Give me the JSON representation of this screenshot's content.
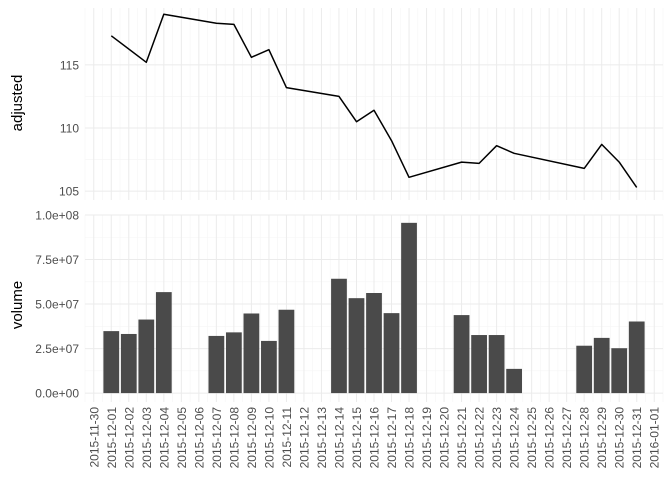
{
  "chart_data": [
    {
      "type": "line",
      "ylabel": "adjusted",
      "yticks": [
        105,
        110,
        115
      ],
      "ylim": [
        104.3,
        119.5
      ],
      "points": [
        {
          "x": "2015-12-01",
          "y": 117.3
        },
        {
          "x": "2015-12-03",
          "y": 115.2
        },
        {
          "x": "2015-12-04",
          "y": 119.0
        },
        {
          "x": "2015-12-07",
          "y": 118.3
        },
        {
          "x": "2015-12-08",
          "y": 118.2
        },
        {
          "x": "2015-12-09",
          "y": 115.6
        },
        {
          "x": "2015-12-10",
          "y": 116.2
        },
        {
          "x": "2015-12-11",
          "y": 113.2
        },
        {
          "x": "2015-12-14",
          "y": 112.5
        },
        {
          "x": "2015-12-15",
          "y": 110.5
        },
        {
          "x": "2015-12-16",
          "y": 111.4
        },
        {
          "x": "2015-12-17",
          "y": 109.0
        },
        {
          "x": "2015-12-18",
          "y": 106.1
        },
        {
          "x": "2015-12-21",
          "y": 107.3
        },
        {
          "x": "2015-12-22",
          "y": 107.2
        },
        {
          "x": "2015-12-23",
          "y": 108.6
        },
        {
          "x": "2015-12-24",
          "y": 108.0
        },
        {
          "x": "2015-12-28",
          "y": 106.8
        },
        {
          "x": "2015-12-29",
          "y": 108.7
        },
        {
          "x": "2015-12-30",
          "y": 107.3
        },
        {
          "x": "2015-12-31",
          "y": 105.3
        }
      ],
      "grid": true,
      "line_color": "#000000"
    },
    {
      "type": "bar",
      "ylabel": "volume",
      "yticks": [
        0,
        25000000,
        50000000,
        75000000,
        100000000
      ],
      "ytick_labels": [
        "0.0e+00",
        "2.5e+07",
        "5.0e+07",
        "7.5e+07",
        "1.0e+08"
      ],
      "ylim": [
        -5000000,
        100000000
      ],
      "bars": [
        {
          "x": "2015-12-01",
          "value": 34800000
        },
        {
          "x": "2015-12-02",
          "value": 33200000
        },
        {
          "x": "2015-12-03",
          "value": 41300000
        },
        {
          "x": "2015-12-04",
          "value": 56700000
        },
        {
          "x": "2015-12-07",
          "value": 32100000
        },
        {
          "x": "2015-12-08",
          "value": 34100000
        },
        {
          "x": "2015-12-09",
          "value": 44700000
        },
        {
          "x": "2015-12-10",
          "value": 29300000
        },
        {
          "x": "2015-12-11",
          "value": 46800000
        },
        {
          "x": "2015-12-14",
          "value": 64200000
        },
        {
          "x": "2015-12-15",
          "value": 53300000
        },
        {
          "x": "2015-12-16",
          "value": 56200000
        },
        {
          "x": "2015-12-17",
          "value": 44900000
        },
        {
          "x": "2015-12-18",
          "value": 95600000
        },
        {
          "x": "2015-12-21",
          "value": 43800000
        },
        {
          "x": "2015-12-22",
          "value": 32600000
        },
        {
          "x": "2015-12-23",
          "value": 32600000
        },
        {
          "x": "2015-12-24",
          "value": 13600000
        },
        {
          "x": "2015-12-28",
          "value": 26600000
        },
        {
          "x": "2015-12-29",
          "value": 31000000
        },
        {
          "x": "2015-12-30",
          "value": 25200000
        },
        {
          "x": "2015-12-31",
          "value": 40200000
        }
      ],
      "grid": true,
      "bar_color": "#4a4a4a"
    }
  ],
  "x_axis": {
    "ticks": [
      "2015-11-30",
      "2015-12-01",
      "2015-12-02",
      "2015-12-03",
      "2015-12-04",
      "2015-12-05",
      "2015-12-06",
      "2015-12-07",
      "2015-12-08",
      "2015-12-09",
      "2015-12-10",
      "2015-12-11",
      "2015-12-12",
      "2015-12-13",
      "2015-12-14",
      "2015-12-15",
      "2015-12-16",
      "2015-12-17",
      "2015-12-18",
      "2015-12-19",
      "2015-12-20",
      "2015-12-21",
      "2015-12-22",
      "2015-12-23",
      "2015-12-24",
      "2015-12-25",
      "2015-12-26",
      "2015-12-27",
      "2015-12-28",
      "2015-12-29",
      "2015-12-30",
      "2015-12-31",
      "2016-01-01"
    ]
  },
  "colors": {
    "grid_major": "#ebebeb",
    "grid_minor": "#f5f5f5",
    "tick_label": "#4d4d4d",
    "axis_title": "#000000"
  }
}
